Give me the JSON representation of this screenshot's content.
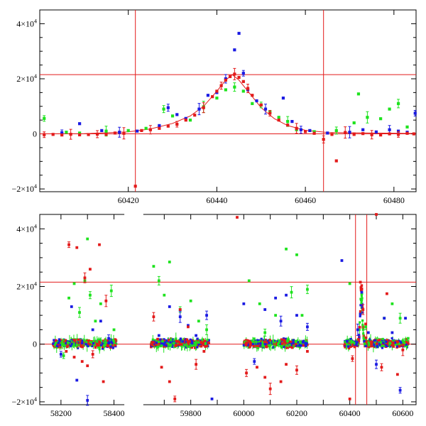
{
  "chart_data": [
    {
      "type": "scatter",
      "title": "",
      "xlabel": "",
      "ylabel": "",
      "xlim": [
        60400,
        60485
      ],
      "ylim": [
        -21000,
        45000
      ],
      "xticks": [
        {
          "v": 60420,
          "label": "60420"
        },
        {
          "v": 60440,
          "label": "60440"
        },
        {
          "v": 60460,
          "label": "60460"
        },
        {
          "v": 60480,
          "label": "60480"
        }
      ],
      "yticks": [
        {
          "v": -20000,
          "m": "−2",
          "e": "4"
        },
        {
          "v": 0,
          "m": "0",
          "e": ""
        },
        {
          "v": 20000,
          "m": "2",
          "e": "4"
        },
        {
          "v": 40000,
          "m": "4",
          "e": "4"
        }
      ],
      "hlines": [
        0,
        21500
      ],
      "vlines": [
        60421.6,
        60464.1
      ],
      "model_curve": {
        "color": "#e31b1b",
        "x": [
          60400,
          60410,
          60420,
          60425,
          60430,
          60434,
          60437,
          60440,
          60442,
          60443.5,
          60445,
          60447,
          60450,
          60453,
          60456,
          60460,
          60465,
          60485
        ],
        "y": [
          0,
          100,
          700,
          1800,
          3800,
          6500,
          10000,
          15500,
          19500,
          21500,
          19500,
          15500,
          9500,
          5500,
          3000,
          1300,
          500,
          150
        ]
      },
      "series": [
        {
          "color": "#e31b1b",
          "points": [
            [
              60401,
              -300
            ],
            [
              60403,
              -200
            ],
            [
              60405,
              -400
            ],
            [
              60407,
              -150
            ],
            [
              60409,
              -350
            ],
            [
              60411,
              -250
            ],
            [
              60413,
              -100
            ],
            [
              60415,
              -200
            ],
            [
              60417,
              300
            ],
            [
              60419,
              200
            ],
            [
              60421.6,
              -19000
            ],
            [
              60423,
              1200
            ],
            [
              60425,
              1500
            ],
            [
              60427,
              2000
            ],
            [
              60429,
              2800
            ],
            [
              60431,
              3500
            ],
            [
              60433,
              5000
            ],
            [
              60435,
              6800
            ],
            [
              60437,
              9500
            ],
            [
              60439,
              13500
            ],
            [
              60440,
              15500
            ],
            [
              60441,
              17500
            ],
            [
              60442,
              19500
            ],
            [
              60443,
              20800
            ],
            [
              60444,
              21700
            ],
            [
              60445,
              20500
            ],
            [
              60446,
              19000
            ],
            [
              60447,
              16500
            ],
            [
              60448,
              14000
            ],
            [
              60450,
              10500
            ],
            [
              60452,
              7500
            ],
            [
              60454,
              5000
            ],
            [
              60456,
              3200
            ],
            [
              60458,
              2000
            ],
            [
              60460,
              800
            ],
            [
              60462,
              200
            ],
            [
              60464.1,
              -2000
            ],
            [
              60466,
              -200
            ],
            [
              60467,
              -9800
            ],
            [
              60469,
              500
            ],
            [
              60471,
              -200
            ],
            [
              60473,
              100
            ],
            [
              60475,
              -300
            ],
            [
              60477,
              -400
            ],
            [
              60479,
              0
            ],
            [
              60481,
              -200
            ],
            [
              60483,
              200
            ],
            [
              60484.5,
              0
            ]
          ]
        },
        {
          "color": "#1b1be3",
          "points": [
            [
              60405,
              400
            ],
            [
              60409,
              3700
            ],
            [
              60414,
              1200
            ],
            [
              60418,
              600
            ],
            [
              60422,
              1000
            ],
            [
              60427,
              3000
            ],
            [
              60429,
              9500
            ],
            [
              60431,
              7000
            ],
            [
              60433,
              5600
            ],
            [
              60436,
              9000
            ],
            [
              60438,
              14000
            ],
            [
              60440,
              15000
            ],
            [
              60442,
              20000
            ],
            [
              60444,
              30500
            ],
            [
              60445,
              36500
            ],
            [
              60446,
              22000
            ],
            [
              60447,
              16000
            ],
            [
              60449,
              12000
            ],
            [
              60451,
              9000
            ],
            [
              60455,
              13000
            ],
            [
              60457,
              4500
            ],
            [
              60459,
              1500
            ],
            [
              60461,
              1200
            ],
            [
              60465,
              300
            ],
            [
              60470,
              600
            ],
            [
              60473,
              1500
            ],
            [
              60476,
              700
            ],
            [
              60479,
              1500
            ],
            [
              60481,
              1000
            ],
            [
              60483,
              600
            ],
            [
              60484.8,
              7500
            ]
          ]
        },
        {
          "color": "#1fe31f",
          "points": [
            [
              60401,
              5600
            ],
            [
              60406,
              600
            ],
            [
              60409,
              300
            ],
            [
              60415,
              1000
            ],
            [
              60420,
              1200
            ],
            [
              60424,
              2000
            ],
            [
              60428,
              9000
            ],
            [
              60430,
              6500
            ],
            [
              60434,
              5000
            ],
            [
              60437,
              9800
            ],
            [
              60440,
              13000
            ],
            [
              60442,
              16000
            ],
            [
              60444,
              17000
            ],
            [
              60446,
              15500
            ],
            [
              60448,
              11000
            ],
            [
              60450,
              10500
            ],
            [
              60452,
              8000
            ],
            [
              60454,
              6000
            ],
            [
              60456,
              4500
            ],
            [
              60458,
              1500
            ],
            [
              60462,
              800
            ],
            [
              60467,
              1200
            ],
            [
              60471,
              4000
            ],
            [
              60472,
              14500
            ],
            [
              60474,
              6000
            ],
            [
              60477,
              5500
            ],
            [
              60479,
              9000
            ],
            [
              60481,
              11000
            ],
            [
              60483,
              2500
            ]
          ]
        }
      ]
    },
    {
      "type": "scatter",
      "title": "",
      "xlabel": "",
      "ylabel": "",
      "xlim": [
        58120,
        60650
      ],
      "ylim": [
        -21000,
        45000
      ],
      "xgap": [
        58440,
        59620
      ],
      "xticks": [
        {
          "v": 58200,
          "label": "58200"
        },
        {
          "v": 58300,
          "label": ""
        },
        {
          "v": 58400,
          "label": "58400"
        },
        {
          "v": 59700,
          "label": ""
        },
        {
          "v": 59800,
          "label": "59800"
        },
        {
          "v": 59900,
          "label": ""
        },
        {
          "v": 60000,
          "label": "60000"
        },
        {
          "v": 60100,
          "label": ""
        },
        {
          "v": 60200,
          "label": "60200"
        },
        {
          "v": 60300,
          "label": ""
        },
        {
          "v": 60400,
          "label": "60400"
        },
        {
          "v": 60500,
          "label": ""
        },
        {
          "v": 60600,
          "label": "60600"
        }
      ],
      "yticks": [
        {
          "v": -20000,
          "m": "−2",
          "e": "4"
        },
        {
          "v": 0,
          "m": "0",
          "e": ""
        },
        {
          "v": 20000,
          "m": "2",
          "e": "4"
        },
        {
          "v": 40000,
          "m": "4",
          "e": "4"
        }
      ],
      "hlines": [
        0,
        21500
      ],
      "vlines": [
        60421.6,
        60464.1
      ],
      "series": [
        {
          "color": "#e31b1b",
          "points": [
            [
              58230,
              34500
            ],
            [
              58260,
              33500
            ],
            [
              58280,
              -6000
            ],
            [
              58290,
              23000
            ],
            [
              58300,
              -7500
            ],
            [
              58310,
              26000
            ],
            [
              58320,
              -3500
            ],
            [
              58345,
              34500
            ],
            [
              58360,
              -13000
            ],
            [
              58370,
              15000
            ],
            [
              58220,
              -2500
            ],
            [
              58250,
              -4500
            ],
            [
              59660,
              9500
            ],
            [
              59690,
              -8000
            ],
            [
              59720,
              -13000
            ],
            [
              59740,
              -19000
            ],
            [
              59760,
              12000
            ],
            [
              59790,
              6000
            ],
            [
              59820,
              -7000
            ],
            [
              59850,
              -2500
            ],
            [
              59975,
              44000
            ],
            [
              60010,
              -10000
            ],
            [
              60050,
              -8000
            ],
            [
              60080,
              -11500
            ],
            [
              60100,
              -15500
            ],
            [
              60140,
              -13000
            ],
            [
              60160,
              -7000
            ],
            [
              60200,
              -9000
            ],
            [
              60240,
              -2500
            ],
            [
              60400,
              -19000
            ],
            [
              60410,
              -5000
            ],
            [
              60440,
              21500
            ],
            [
              60445,
              19000
            ],
            [
              60450,
              12000
            ],
            [
              60460,
              7000
            ],
            [
              60500,
              45000
            ],
            [
              60520,
              -8000
            ],
            [
              60540,
              17500
            ],
            [
              60580,
              -10500
            ],
            [
              60600,
              -2000
            ]
          ]
        },
        {
          "color": "#1b1be3",
          "points": [
            [
              58200,
              -3500
            ],
            [
              58240,
              13000
            ],
            [
              58260,
              -12500
            ],
            [
              58300,
              -19500
            ],
            [
              58320,
              5000
            ],
            [
              58350,
              8000
            ],
            [
              58380,
              2000
            ],
            [
              59680,
              3000
            ],
            [
              59720,
              13000
            ],
            [
              59760,
              9500
            ],
            [
              59790,
              6500
            ],
            [
              59820,
              3000
            ],
            [
              59860,
              10000
            ],
            [
              59880,
              -19000
            ],
            [
              60000,
              14000
            ],
            [
              60040,
              -6000
            ],
            [
              60080,
              12000
            ],
            [
              60120,
              16000
            ],
            [
              60140,
              8000
            ],
            [
              60160,
              17000
            ],
            [
              60200,
              10000
            ],
            [
              60240,
              6000
            ],
            [
              60370,
              29000
            ],
            [
              60390,
              1000
            ],
            [
              60430,
              5000
            ],
            [
              60445,
              18000
            ],
            [
              60470,
              4000
            ],
            [
              60500,
              -7000
            ],
            [
              60530,
              9000
            ],
            [
              60560,
              4000
            ],
            [
              60590,
              -16000
            ],
            [
              60610,
              9000
            ]
          ]
        },
        {
          "color": "#1fe31f",
          "points": [
            [
              58210,
              -4000
            ],
            [
              58230,
              16000
            ],
            [
              58250,
              21000
            ],
            [
              58270,
              11000
            ],
            [
              58290,
              22000
            ],
            [
              58300,
              36500
            ],
            [
              58310,
              17000
            ],
            [
              58330,
              8000
            ],
            [
              58350,
              14000
            ],
            [
              58390,
              18500
            ],
            [
              58400,
              5000
            ],
            [
              59660,
              27000
            ],
            [
              59680,
              22000
            ],
            [
              59700,
              17000
            ],
            [
              59720,
              28500
            ],
            [
              59760,
              12000
            ],
            [
              59800,
              15000
            ],
            [
              59830,
              8000
            ],
            [
              59860,
              5000
            ],
            [
              60020,
              22000
            ],
            [
              60060,
              14000
            ],
            [
              60080,
              4000
            ],
            [
              60120,
              10000
            ],
            [
              60160,
              33000
            ],
            [
              60180,
              18000
            ],
            [
              60200,
              31000
            ],
            [
              60220,
              10000
            ],
            [
              60240,
              19000
            ],
            [
              60400,
              21000
            ],
            [
              60445,
              17500
            ],
            [
              60460,
              6000
            ],
            [
              60530,
              9000
            ],
            [
              60560,
              14000
            ],
            [
              60590,
              9000
            ],
            [
              60620,
              2000
            ]
          ]
        }
      ],
      "dense_bands": [
        {
          "x0": 58170,
          "x1": 58410,
          "n": 460
        },
        {
          "x0": 59650,
          "x1": 59870,
          "n": 420
        },
        {
          "x0": 60000,
          "x1": 60240,
          "n": 460
        },
        {
          "x0": 60380,
          "x1": 60470,
          "n": 220
        },
        {
          "x0": 60470,
          "x1": 60620,
          "n": 320
        }
      ]
    }
  ]
}
